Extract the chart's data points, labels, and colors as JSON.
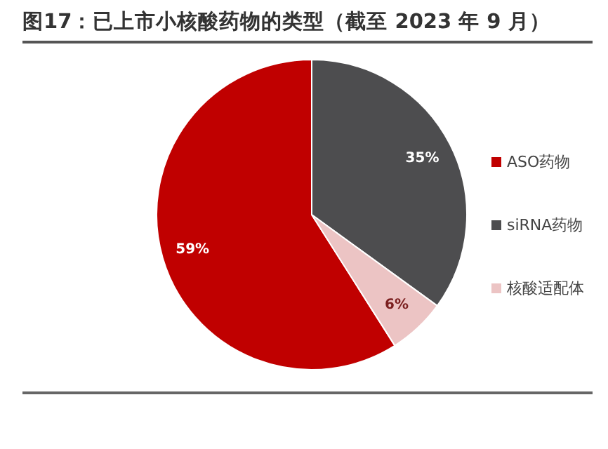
{
  "chart_data": {
    "type": "pie",
    "title": "图17：已上市小核酸药物的类型（截至 2023 年 9 月）",
    "categories": [
      "ASO药物",
      "siRNA药物",
      "核酸适配体"
    ],
    "values": [
      59,
      35,
      6
    ],
    "colors": [
      "#c00000",
      "#4d4d4f",
      "#ecc4c4"
    ],
    "value_labels": [
      "59%",
      "35%",
      "6%"
    ],
    "legend": "right"
  }
}
